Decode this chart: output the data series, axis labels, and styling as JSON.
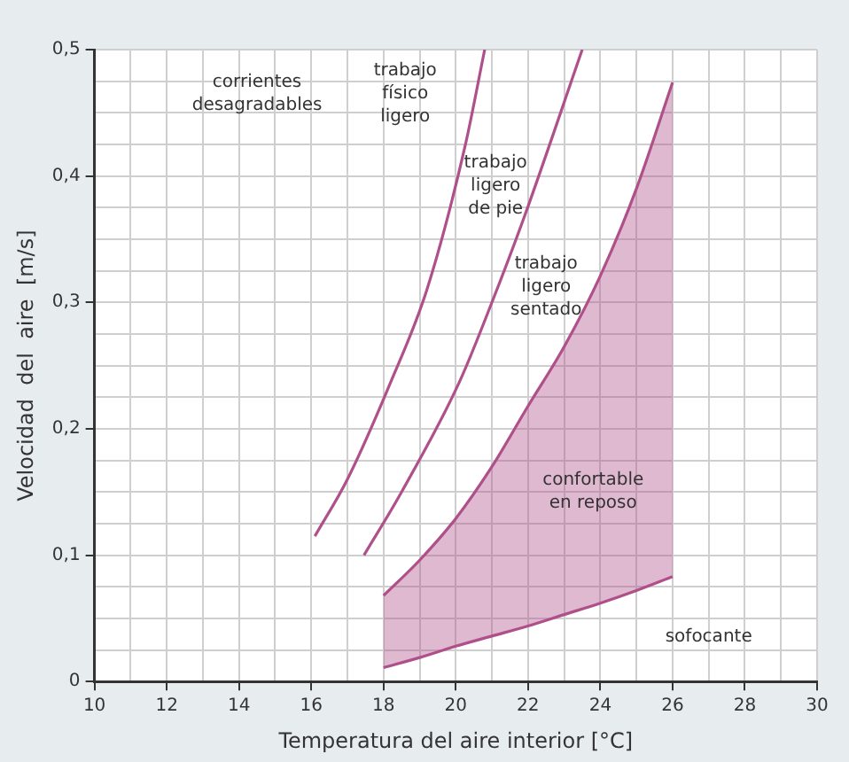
{
  "chart_data": {
    "type": "line",
    "xlabel": "Temperatura del aire interior [°C]",
    "ylabel": "Velocidad  del  aire  [m/s]",
    "xlim": [
      10,
      30
    ],
    "ylim": [
      0,
      0.5
    ],
    "xticks": [
      10,
      {
        "value": 11,
        "label": null
      },
      12,
      {
        "value": 13,
        "label": null
      },
      14,
      {
        "value": 15,
        "label": null
      },
      16,
      {
        "value": 17,
        "label": null
      },
      18,
      {
        "value": 19,
        "label": null
      },
      20,
      {
        "value": 21,
        "label": null
      },
      22,
      {
        "value": 23,
        "label": null
      },
      24,
      {
        "value": 25,
        "label": null
      },
      26,
      {
        "value": 27,
        "label": null
      },
      28,
      {
        "value": 29,
        "label": null
      },
      30
    ],
    "yticks": [
      0,
      {
        "value": 0.025,
        "label": null
      },
      {
        "value": 0.05,
        "label": null
      },
      {
        "value": 0.075,
        "label": null
      },
      {
        "value": 0.1,
        "label": "0,1"
      },
      {
        "value": 0.125,
        "label": null
      },
      {
        "value": 0.15,
        "label": null
      },
      {
        "value": 0.175,
        "label": null
      },
      {
        "value": 0.2,
        "label": "0,2"
      },
      {
        "value": 0.225,
        "label": null
      },
      {
        "value": 0.25,
        "label": null
      },
      {
        "value": 0.275,
        "label": null
      },
      {
        "value": 0.3,
        "label": "0,3"
      },
      {
        "value": 0.325,
        "label": null
      },
      {
        "value": 0.35,
        "label": null
      },
      {
        "value": 0.375,
        "label": null
      },
      {
        "value": 0.4,
        "label": "0,4"
      },
      {
        "value": 0.425,
        "label": null
      },
      {
        "value": 0.45,
        "label": null
      },
      {
        "value": 0.475,
        "label": null
      },
      {
        "value": 0.5,
        "label": "0,5"
      }
    ],
    "grid": true,
    "legend": false,
    "marker": "none",
    "series": [
      {
        "color": "#b0508a",
        "x": [
          16.1,
          17,
          18.2,
          19.2,
          20.26,
          20.8
        ],
        "values": [
          0.115,
          0.16,
          0.237,
          0.31,
          0.424,
          0.5
        ]
      },
      {
        "color": "#b0508a",
        "x": [
          17.46,
          18.5,
          20.1,
          21,
          21.9,
          23.5
        ],
        "values": [
          0.1,
          0.15,
          0.237,
          0.3,
          0.368,
          0.5
        ]
      },
      {
        "color": "#b0508a",
        "x": [
          18,
          19,
          20,
          21,
          22,
          23,
          24,
          25,
          26
        ],
        "values": [
          0.068,
          0.096,
          0.129,
          0.17,
          0.218,
          0.265,
          0.321,
          0.39,
          0.474
        ],
        "lower": [
          0.011,
          0.019,
          0.028,
          0.036,
          0.044,
          0.053,
          0.062,
          0.072,
          0.083
        ],
        "upper": [
          0.068,
          0.096,
          0.129,
          0.17,
          0.218,
          0.265,
          0.321,
          0.39,
          0.474
        ]
      },
      {
        "color": "#b0508a",
        "x": [
          18,
          19,
          20,
          21,
          22,
          23,
          24,
          25,
          26
        ],
        "values": [
          0.011,
          0.019,
          0.028,
          0.036,
          0.044,
          0.053,
          0.062,
          0.072,
          0.083
        ]
      }
    ],
    "annotations": [
      "corrientes\ndesagradables",
      "trabajo\nfísico\nligero",
      "trabajo\nligero\nde pie",
      "trabajo\nligero\nsentado",
      "confortable\nen reposo",
      "sofocante"
    ]
  }
}
